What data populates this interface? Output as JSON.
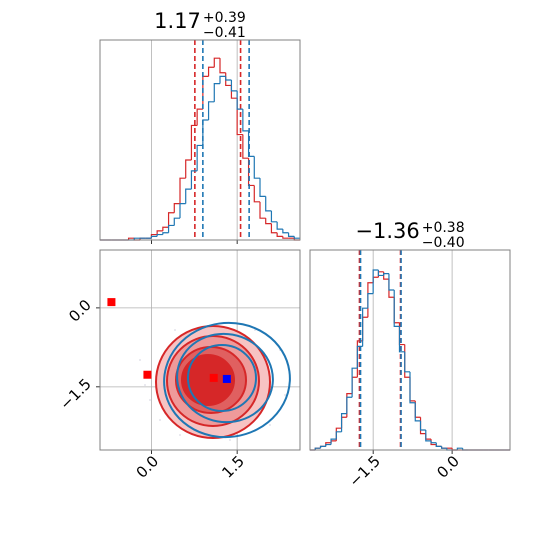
{
  "chart_data": [
    {
      "type": "histogram",
      "title": {
        "value": "1.17",
        "plus": "+0.39",
        "minus": "−0.41"
      },
      "bins": [
        -0.9,
        -0.8,
        -0.7,
        -0.6,
        -0.5,
        -0.4,
        -0.3,
        -0.2,
        -0.1,
        0.0,
        0.1,
        0.2,
        0.3,
        0.4,
        0.5,
        0.6,
        0.7,
        0.8,
        0.9,
        1.0,
        1.1,
        1.2,
        1.3,
        1.4,
        1.5,
        1.6,
        1.7,
        1.8,
        1.9,
        2.0,
        2.1,
        2.2,
        2.3,
        2.4,
        2.5,
        2.6
      ],
      "xlim": [
        -0.9,
        2.6
      ],
      "ylim": [
        0,
        110
      ],
      "xticks": [
        {
          "value": 0,
          "label": "0.0"
        },
        1.5
      ],
      "grid": true,
      "series": [
        {
          "color": "#d62728",
          "quantiles": [
            0.76,
            1.56
          ],
          "values": [
            0,
            0,
            0,
            0,
            0,
            1,
            0,
            1,
            1,
            3,
            5,
            7,
            15,
            20,
            34,
            44,
            63,
            72,
            90,
            95,
            100,
            92,
            85,
            78,
            58,
            45,
            30,
            21,
            12,
            9,
            4,
            2,
            1,
            1,
            0
          ]
        },
        {
          "color": "#1f77b4",
          "quantiles": [
            0.9,
            1.71
          ],
          "values": [
            0,
            0,
            0,
            0,
            0,
            0,
            1,
            1,
            1,
            2,
            3,
            4,
            8,
            12,
            20,
            28,
            38,
            52,
            66,
            76,
            86,
            90,
            88,
            82,
            72,
            60,
            46,
            34,
            24,
            16,
            10,
            6,
            4,
            2,
            1
          ]
        }
      ]
    },
    {
      "type": "scatter",
      "xlim": [
        -0.9,
        2.6
      ],
      "ylim": [
        -2.7,
        1.1
      ],
      "xticks": [
        {
          "value": 0,
          "label": "0.0"
        },
        1.5
      ],
      "yticks": [
        {
          "value": 0,
          "label": "0.0"
        },
        {
          "value": -1.5,
          "label": "−1.5"
        }
      ],
      "grid": true,
      "points": [
        {
          "x": -0.7,
          "y": 0.11,
          "color": "#ff0000"
        },
        {
          "x": -0.07,
          "y": -1.27,
          "color": "#ff0000"
        },
        {
          "x": 1.09,
          "y": -1.33,
          "color": "#ff0000"
        },
        {
          "x": 1.32,
          "y": -1.35,
          "color": "#0000ff"
        }
      ]
    },
    {
      "type": "histogram",
      "title": {
        "value": "−1.36",
        "plus": "+0.38",
        "minus": "−0.40"
      },
      "bins": [
        -2.7,
        -2.6,
        -2.5,
        -2.4,
        -2.3,
        -2.2,
        -2.1,
        -2.0,
        -1.9,
        -1.8,
        -1.7,
        -1.6,
        -1.5,
        -1.4,
        -1.3,
        -1.2,
        -1.1,
        -1.0,
        -0.9,
        -0.8,
        -0.7,
        -0.6,
        -0.5,
        -0.4,
        -0.3,
        -0.2,
        -0.1,
        0.0,
        0.1,
        0.2,
        0.3,
        0.4,
        0.5,
        0.6,
        0.7,
        0.8,
        0.9,
        1.0,
        1.1
      ],
      "xlim": [
        -2.7,
        1.1
      ],
      "ylim": [
        0,
        110
      ],
      "xticks": [
        {
          "value": -1.5,
          "label": "−1.5"
        },
        {
          "value": 0,
          "label": "0.0"
        }
      ],
      "grid": true,
      "series": [
        {
          "color": "#d62728",
          "quantiles": [
            -1.76,
            -0.98
          ],
          "values": [
            0,
            1,
            2,
            4,
            5,
            12,
            18,
            31,
            40,
            60,
            73,
            92,
            95,
            98,
            94,
            84,
            70,
            58,
            40,
            27,
            18,
            9,
            6,
            3,
            2,
            1,
            1,
            0,
            0,
            0,
            0,
            0,
            0,
            0,
            0,
            0,
            0,
            0
          ]
        },
        {
          "color": "#1f77b4",
          "quantiles": [
            -1.74,
            -0.97
          ],
          "values": [
            0,
            1,
            2,
            3,
            6,
            10,
            20,
            29,
            45,
            57,
            78,
            86,
            99,
            96,
            97,
            88,
            68,
            54,
            43,
            26,
            16,
            11,
            5,
            4,
            2,
            1,
            0,
            0,
            1,
            0,
            0,
            0,
            0,
            0,
            0,
            0,
            0,
            0
          ]
        }
      ]
    }
  ]
}
